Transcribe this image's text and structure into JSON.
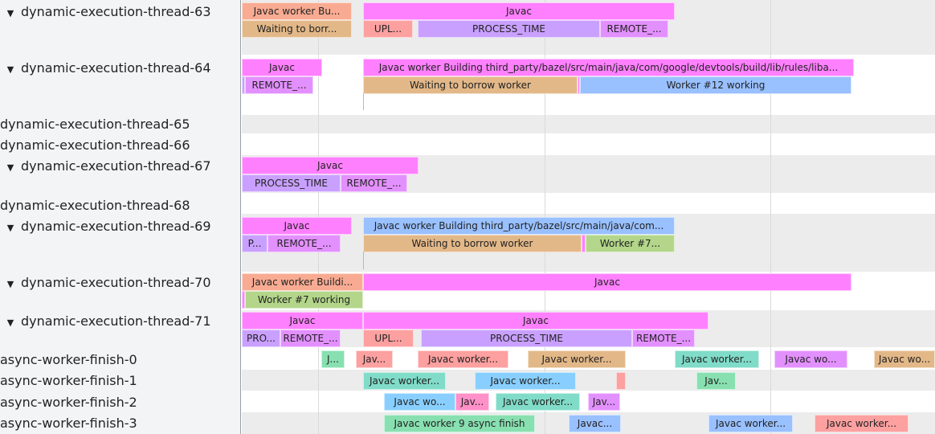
{
  "colors": {
    "magenta": "#ff80ff",
    "salmon": "#f8ab92",
    "tan": "#e3b888",
    "pink": "#fda0a0",
    "lavender": "#c9a0ff",
    "violet": "#e390ff",
    "blue": "#99c0ff",
    "sky": "#88cfff",
    "green": "#b3d68a",
    "teal": "#80dcc8",
    "mint": "#88e0b0",
    "rose": "#ff90c8"
  },
  "tracks": [
    {
      "label": "dynamic-execution-thread-63",
      "expanded": true,
      "slices": [
        {
          "label": "Javac worker Bu...",
          "color": "salmon"
        },
        {
          "label": "Javac",
          "color": "magenta"
        },
        {
          "label": "Waiting to borr...",
          "color": "tan"
        },
        {
          "label": "UPL...",
          "color": "pink"
        },
        {
          "label": "PROCESS_TIME",
          "color": "lavender"
        },
        {
          "label": "REMOTE_...",
          "color": "violet"
        }
      ]
    },
    {
      "label": "dynamic-execution-thread-64",
      "expanded": true,
      "slices": [
        {
          "label": "Javac",
          "color": "magenta"
        },
        {
          "label": "Javac worker Building third_party/bazel/src/main/java/com/google/devtools/build/lib/rules/liba...",
          "color": "magenta"
        },
        {
          "label": "",
          "color": "lavender"
        },
        {
          "label": "REMOTE_...",
          "color": "violet"
        },
        {
          "label": "Waiting to borrow worker",
          "color": "tan"
        },
        {
          "label": "",
          "color": "magenta"
        },
        {
          "label": "Worker #12 working",
          "color": "blue"
        }
      ]
    },
    {
      "label": "dynamic-execution-thread-65",
      "expanded": false,
      "slices": []
    },
    {
      "label": "dynamic-execution-thread-66",
      "expanded": false,
      "slices": []
    },
    {
      "label": "dynamic-execution-thread-67",
      "expanded": true,
      "slices": [
        {
          "label": "Javac",
          "color": "magenta"
        },
        {
          "label": "PROCESS_TIME",
          "color": "lavender"
        },
        {
          "label": "REMOTE_...",
          "color": "violet"
        }
      ]
    },
    {
      "label": "dynamic-execution-thread-68",
      "expanded": false,
      "slices": []
    },
    {
      "label": "dynamic-execution-thread-69",
      "expanded": true,
      "slices": [
        {
          "label": "Javac",
          "color": "magenta"
        },
        {
          "label": "Javac worker Building third_party/bazel/src/main/java/com...",
          "color": "blue"
        },
        {
          "label": "P...",
          "color": "lavender"
        },
        {
          "label": "REMOTE_...",
          "color": "violet"
        },
        {
          "label": "Waiting to borrow worker",
          "color": "tan"
        },
        {
          "label": "",
          "color": "magenta"
        },
        {
          "label": "Worker #7...",
          "color": "green"
        }
      ]
    },
    {
      "label": "dynamic-execution-thread-70",
      "expanded": true,
      "slices": [
        {
          "label": "Javac worker Buildi...",
          "color": "salmon"
        },
        {
          "label": "Javac",
          "color": "magenta"
        },
        {
          "label": "",
          "color": "magenta"
        },
        {
          "label": "Worker #7 working",
          "color": "green"
        }
      ]
    },
    {
      "label": "dynamic-execution-thread-71",
      "expanded": true,
      "slices": [
        {
          "label": "Javac",
          "color": "magenta"
        },
        {
          "label": "Javac",
          "color": "magenta"
        },
        {
          "label": "PRO...",
          "color": "lavender"
        },
        {
          "label": "REMOTE_...",
          "color": "violet"
        },
        {
          "label": "UPL...",
          "color": "pink"
        },
        {
          "label": "PROCESS_TIME",
          "color": "lavender"
        },
        {
          "label": "REMOTE_...",
          "color": "violet"
        }
      ]
    },
    {
      "label": "async-worker-finish-0",
      "expanded": false,
      "slices": [
        {
          "label": "J...",
          "color": "mint"
        },
        {
          "label": "Jav...",
          "color": "pink"
        },
        {
          "label": "Javac worker...",
          "color": "pink"
        },
        {
          "label": "Javac worker...",
          "color": "tan"
        },
        {
          "label": "Javac worker...",
          "color": "teal"
        },
        {
          "label": "Javac wo...",
          "color": "violet"
        },
        {
          "label": "Javac wo...",
          "color": "tan"
        }
      ]
    },
    {
      "label": "async-worker-finish-1",
      "expanded": false,
      "slices": [
        {
          "label": "Javac worker...",
          "color": "teal"
        },
        {
          "label": "Javac worker...",
          "color": "sky"
        },
        {
          "label": "",
          "color": "pink"
        },
        {
          "label": "Jav...",
          "color": "mint"
        }
      ]
    },
    {
      "label": "async-worker-finish-2",
      "expanded": false,
      "slices": [
        {
          "label": "Javac wo...",
          "color": "sky"
        },
        {
          "label": "Jav...",
          "color": "rose"
        },
        {
          "label": "Javac worker...",
          "color": "teal"
        },
        {
          "label": "Jav...",
          "color": "violet"
        }
      ]
    },
    {
      "label": "async-worker-finish-3",
      "expanded": false,
      "slices": [
        {
          "label": "Javac worker 9 async finish",
          "color": "mint"
        },
        {
          "label": "Javac...",
          "color": "blue"
        },
        {
          "label": "Javac worker...",
          "color": "blue"
        },
        {
          "label": "Javac worker...",
          "color": "pink"
        }
      ]
    }
  ]
}
